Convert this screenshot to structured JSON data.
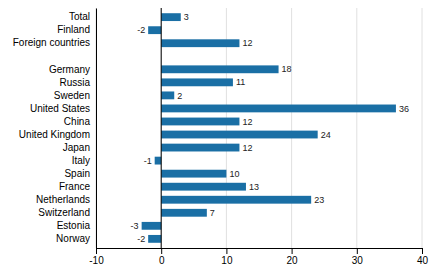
{
  "chart_data": {
    "type": "bar",
    "orientation": "horizontal",
    "categories": [
      "Norway",
      "Estonia",
      "Switzerland",
      "Netherlands",
      "France",
      "Spain",
      "Italy",
      "Japan",
      "United Kingdom",
      "China",
      "United States",
      "Sweden",
      "Russia",
      "Germany",
      null,
      "Foreign countries",
      "Finland",
      "Total"
    ],
    "values": [
      -2,
      -3,
      7,
      23,
      13,
      10,
      -1,
      12,
      24,
      12,
      36,
      2,
      11,
      18,
      null,
      12,
      -2,
      3
    ],
    "color": "#1a6fa5",
    "xlim": [
      -10,
      40
    ],
    "xticks": [
      -10,
      0,
      10,
      20,
      30,
      40
    ],
    "grid": true,
    "data_labels": true
  }
}
